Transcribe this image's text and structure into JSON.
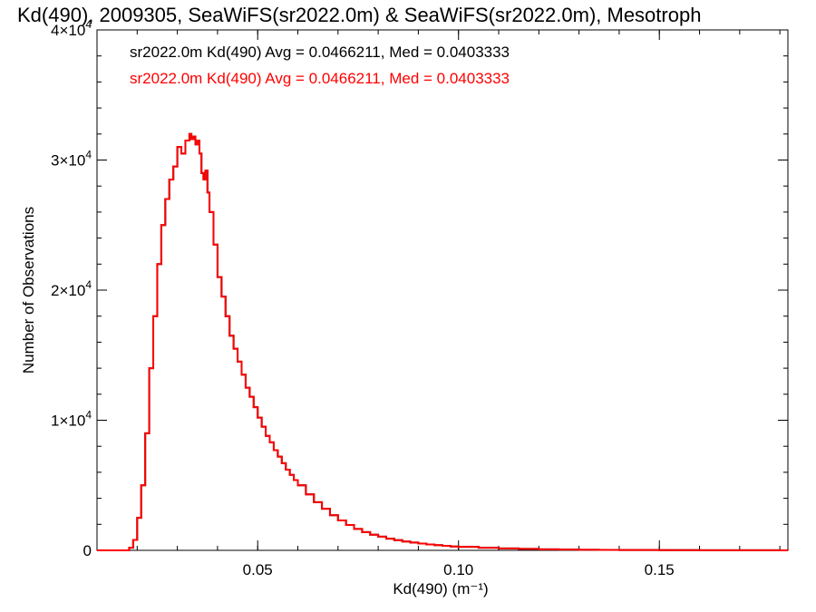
{
  "chart_data": {
    "type": "line",
    "title": "Kd(490), 2009305, SeaWiFS(sr2022.0m) & SeaWiFS(sr2022.0m), Mesotroph",
    "xlabel": "Kd(490) (m⁻¹)",
    "ylabel": "Number of Observations",
    "xlim": [
      0.01,
      0.182
    ],
    "ylim": [
      0,
      40000
    ],
    "x_ticks": [
      {
        "value": 0.05,
        "label": "0.05"
      },
      {
        "value": 0.1,
        "label": "0.10"
      },
      {
        "value": 0.15,
        "label": "0.15"
      }
    ],
    "y_ticks": [
      {
        "value": 0,
        "mant": "0",
        "exp": ""
      },
      {
        "value": 10000,
        "mant": "1×10",
        "exp": "4"
      },
      {
        "value": 20000,
        "mant": "2×10",
        "exp": "4"
      },
      {
        "value": 30000,
        "mant": "3×10",
        "exp": "4"
      },
      {
        "value": 40000,
        "mant": "4×10",
        "exp": "4"
      }
    ],
    "annotations": [
      {
        "text": "sr2022.0m Kd(490) Avg = 0.0466211, Med = 0.0403333",
        "color": "#000000"
      },
      {
        "text": "sr2022.0m Kd(490) Avg = 0.0466211, Med = 0.0403333",
        "color": "#ff0000"
      }
    ],
    "series_colors": [
      "#000000",
      "#ff0000"
    ],
    "series": [
      {
        "x": [
          0.01,
          0.015,
          0.018,
          0.019,
          0.02,
          0.021,
          0.022,
          0.023,
          0.024,
          0.025,
          0.026,
          0.027,
          0.028,
          0.029,
          0.03,
          0.031,
          0.032,
          0.033,
          0.0335,
          0.034,
          0.0345,
          0.035,
          0.0355,
          0.036,
          0.0365,
          0.037,
          0.0375,
          0.038,
          0.039,
          0.04,
          0.041,
          0.042,
          0.043,
          0.044,
          0.045,
          0.046,
          0.047,
          0.048,
          0.049,
          0.05,
          0.051,
          0.052,
          0.053,
          0.054,
          0.055,
          0.056,
          0.057,
          0.058,
          0.059,
          0.06,
          0.062,
          0.064,
          0.066,
          0.068,
          0.07,
          0.072,
          0.074,
          0.076,
          0.078,
          0.08,
          0.082,
          0.084,
          0.086,
          0.088,
          0.09,
          0.092,
          0.094,
          0.096,
          0.098,
          0.1,
          0.105,
          0.11,
          0.115,
          0.12,
          0.125,
          0.13,
          0.135,
          0.14,
          0.145,
          0.15,
          0.155,
          0.16,
          0.165,
          0.17,
          0.175,
          0.18,
          0.182
        ],
        "y": [
          0,
          0,
          200,
          800,
          2500,
          5000,
          9000,
          14000,
          18000,
          22000,
          25000,
          27000,
          28500,
          29500,
          31000,
          30500,
          31500,
          32000,
          31600,
          31800,
          31200,
          31500,
          30500,
          29000,
          28500,
          29200,
          27500,
          26000,
          23500,
          21000,
          19500,
          18000,
          16500,
          15500,
          14500,
          13500,
          12500,
          11800,
          11000,
          10200,
          9500,
          8800,
          8300,
          7700,
          7200,
          6700,
          6200,
          5800,
          5400,
          5000,
          4300,
          3700,
          3200,
          2700,
          2300,
          1950,
          1650,
          1400,
          1200,
          1050,
          900,
          780,
          680,
          600,
          520,
          450,
          400,
          350,
          300,
          270,
          200,
          150,
          110,
          80,
          60,
          45,
          35,
          28,
          22,
          18,
          14,
          11,
          8,
          6,
          5,
          4,
          3
        ]
      },
      {
        "x": [
          0.01,
          0.015,
          0.018,
          0.019,
          0.02,
          0.021,
          0.022,
          0.023,
          0.024,
          0.025,
          0.026,
          0.027,
          0.028,
          0.029,
          0.03,
          0.031,
          0.032,
          0.033,
          0.0335,
          0.034,
          0.0345,
          0.035,
          0.0355,
          0.036,
          0.0365,
          0.037,
          0.0375,
          0.038,
          0.039,
          0.04,
          0.041,
          0.042,
          0.043,
          0.044,
          0.045,
          0.046,
          0.047,
          0.048,
          0.049,
          0.05,
          0.051,
          0.052,
          0.053,
          0.054,
          0.055,
          0.056,
          0.057,
          0.058,
          0.059,
          0.06,
          0.062,
          0.064,
          0.066,
          0.068,
          0.07,
          0.072,
          0.074,
          0.076,
          0.078,
          0.08,
          0.082,
          0.084,
          0.086,
          0.088,
          0.09,
          0.092,
          0.094,
          0.096,
          0.098,
          0.1,
          0.105,
          0.11,
          0.115,
          0.12,
          0.125,
          0.13,
          0.135,
          0.14,
          0.145,
          0.15,
          0.155,
          0.16,
          0.165,
          0.17,
          0.175,
          0.18,
          0.182
        ],
        "y": [
          0,
          0,
          200,
          800,
          2500,
          5000,
          9000,
          14000,
          18000,
          22000,
          25000,
          27000,
          28500,
          29500,
          31000,
          30500,
          31500,
          32000,
          31600,
          31800,
          31200,
          31500,
          30500,
          29000,
          28500,
          29200,
          27500,
          26000,
          23500,
          21000,
          19500,
          18000,
          16500,
          15500,
          14500,
          13500,
          12500,
          11800,
          11000,
          10200,
          9500,
          8800,
          8300,
          7700,
          7200,
          6700,
          6200,
          5800,
          5400,
          5000,
          4300,
          3700,
          3200,
          2700,
          2300,
          1950,
          1650,
          1400,
          1200,
          1050,
          900,
          780,
          680,
          600,
          520,
          450,
          400,
          350,
          300,
          270,
          200,
          150,
          110,
          80,
          60,
          45,
          35,
          28,
          22,
          18,
          14,
          11,
          8,
          6,
          5,
          4,
          3
        ]
      }
    ]
  }
}
